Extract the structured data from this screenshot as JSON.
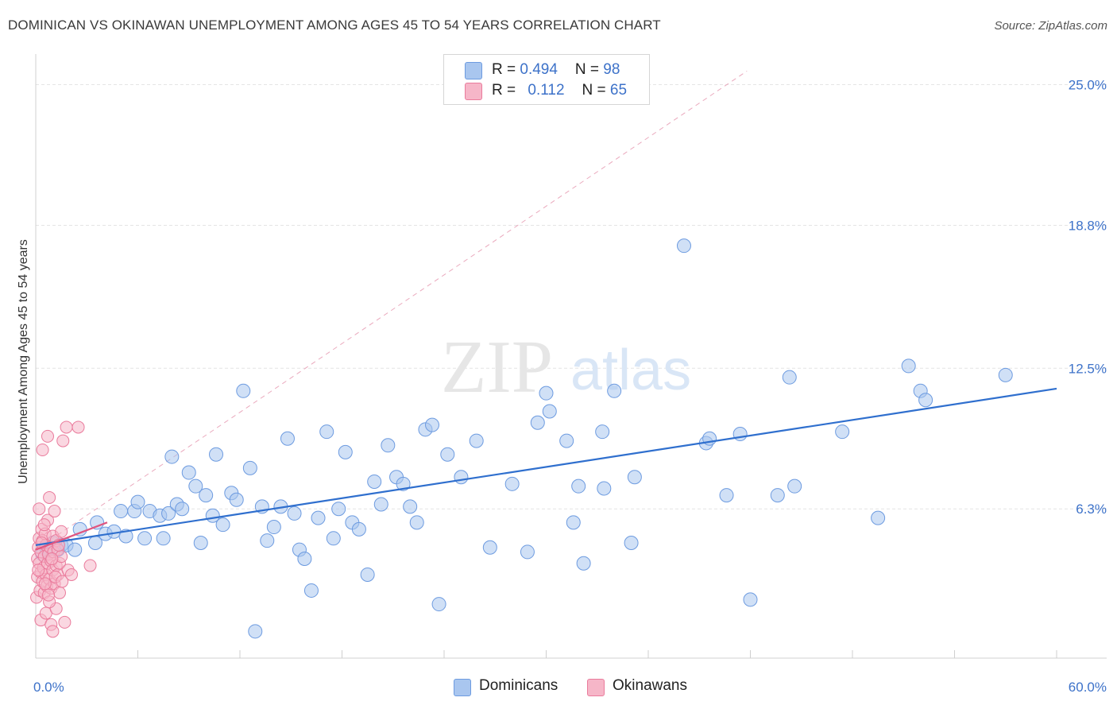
{
  "title": "DOMINICAN VS OKINAWAN UNEMPLOYMENT AMONG AGES 45 TO 54 YEARS CORRELATION CHART",
  "source": "Source: ZipAtlas.com",
  "watermark": {
    "zip": "ZIP",
    "atlas": "atlas"
  },
  "colors": {
    "blue_fill": "#a9c6ef",
    "blue_stroke": "#6d9be0",
    "blue_line": "#2f6fce",
    "pink_fill": "#f6b6c8",
    "pink_stroke": "#ea7b9c",
    "pink_line": "#e0557f",
    "axis_text": "#3d72c9",
    "grid": "#e4e4e4"
  },
  "legend_top": [
    {
      "r_label": "R = ",
      "r_value": "0.494",
      "n_label": "N = ",
      "n_value": "98"
    },
    {
      "r_label": "R = ",
      "r_value": "0.112",
      "n_label": "N = ",
      "n_value": "65"
    }
  ],
  "legend_bottom": [
    "Dominicans",
    "Okinawans"
  ],
  "chart_data": {
    "type": "scatter",
    "title": "DOMINICAN VS OKINAWAN UNEMPLOYMENT AMONG AGES 45 TO 54 YEARS CORRELATION CHART",
    "xlabel": "",
    "ylabel": "Unemployment Among Ages 45 to 54 years",
    "xlim": [
      0,
      60
    ],
    "ylim": [
      0,
      26
    ],
    "x_tick_labels": [
      {
        "value": 0,
        "label": "0.0%"
      },
      {
        "value": 60,
        "label": "60.0%"
      }
    ],
    "y_tick_labels": [
      {
        "value": 6.3,
        "label": "6.3%"
      },
      {
        "value": 12.5,
        "label": "12.5%"
      },
      {
        "value": 18.8,
        "label": "18.8%"
      },
      {
        "value": 25.0,
        "label": "25.0%"
      }
    ],
    "series": [
      {
        "name": "Dominicans",
        "r": 0.494,
        "n": 98,
        "trend": {
          "x": [
            0,
            60
          ],
          "y": [
            4.7,
            11.6
          ]
        },
        "points": [
          [
            0.4,
            4.3
          ],
          [
            0.6,
            4.6
          ],
          [
            0.7,
            4.5
          ],
          [
            0.8,
            4.6
          ],
          [
            1.0,
            4.8
          ],
          [
            1.3,
            4.5
          ],
          [
            1.5,
            4.7
          ],
          [
            1.8,
            4.7
          ],
          [
            2.3,
            4.5
          ],
          [
            2.6,
            5.4
          ],
          [
            3.5,
            4.8
          ],
          [
            3.6,
            5.7
          ],
          [
            4.1,
            5.2
          ],
          [
            4.6,
            5.3
          ],
          [
            5.0,
            6.2
          ],
          [
            5.3,
            5.1
          ],
          [
            5.8,
            6.2
          ],
          [
            6.0,
            6.6
          ],
          [
            6.4,
            5.0
          ],
          [
            6.7,
            6.2
          ],
          [
            7.3,
            6.0
          ],
          [
            7.5,
            5.0
          ],
          [
            7.8,
            6.1
          ],
          [
            8.0,
            8.6
          ],
          [
            8.3,
            6.5
          ],
          [
            8.6,
            6.3
          ],
          [
            9.0,
            7.9
          ],
          [
            9.4,
            7.3
          ],
          [
            9.7,
            4.8
          ],
          [
            10.0,
            6.9
          ],
          [
            10.4,
            6.0
          ],
          [
            10.6,
            8.7
          ],
          [
            11.0,
            5.6
          ],
          [
            11.5,
            7.0
          ],
          [
            11.8,
            6.7
          ],
          [
            12.2,
            11.5
          ],
          [
            12.6,
            8.1
          ],
          [
            12.9,
            0.9
          ],
          [
            13.3,
            6.4
          ],
          [
            13.6,
            4.9
          ],
          [
            14.0,
            5.5
          ],
          [
            14.4,
            6.4
          ],
          [
            14.8,
            9.4
          ],
          [
            15.2,
            6.1
          ],
          [
            15.5,
            4.5
          ],
          [
            15.8,
            4.1
          ],
          [
            16.2,
            2.7
          ],
          [
            16.6,
            5.9
          ],
          [
            17.1,
            9.7
          ],
          [
            17.5,
            5.0
          ],
          [
            17.8,
            6.3
          ],
          [
            18.2,
            8.8
          ],
          [
            18.6,
            5.7
          ],
          [
            19.0,
            5.4
          ],
          [
            19.5,
            3.4
          ],
          [
            19.9,
            7.5
          ],
          [
            20.3,
            6.5
          ],
          [
            20.7,
            9.1
          ],
          [
            21.2,
            7.7
          ],
          [
            21.6,
            7.4
          ],
          [
            22.0,
            6.4
          ],
          [
            22.4,
            5.7
          ],
          [
            22.9,
            9.8
          ],
          [
            23.3,
            10.0
          ],
          [
            23.7,
            2.1
          ],
          [
            24.2,
            8.7
          ],
          [
            25.0,
            7.7
          ],
          [
            25.9,
            9.3
          ],
          [
            26.7,
            4.6
          ],
          [
            28.0,
            7.4
          ],
          [
            28.9,
            4.4
          ],
          [
            29.5,
            10.1
          ],
          [
            30.0,
            11.4
          ],
          [
            30.2,
            10.6
          ],
          [
            31.2,
            9.3
          ],
          [
            31.6,
            5.7
          ],
          [
            31.9,
            7.3
          ],
          [
            32.2,
            3.9
          ],
          [
            33.3,
            9.7
          ],
          [
            33.4,
            7.2
          ],
          [
            34.0,
            11.5
          ],
          [
            35.2,
            7.7
          ],
          [
            35.0,
            4.8
          ],
          [
            38.1,
            17.9
          ],
          [
            39.4,
            9.2
          ],
          [
            39.6,
            9.4
          ],
          [
            40.6,
            6.9
          ],
          [
            41.4,
            9.6
          ],
          [
            42.0,
            2.3
          ],
          [
            43.6,
            6.9
          ],
          [
            44.3,
            12.1
          ],
          [
            44.6,
            7.3
          ],
          [
            47.4,
            9.7
          ],
          [
            49.5,
            5.9
          ],
          [
            51.3,
            12.6
          ],
          [
            52.0,
            11.5
          ],
          [
            52.3,
            11.1
          ],
          [
            57.0,
            12.2
          ]
        ]
      },
      {
        "name": "Okinawans",
        "r": 0.112,
        "n": 65,
        "trend": {
          "x": [
            0,
            4.2
          ],
          "y": [
            4.5,
            5.7
          ]
        },
        "points": [
          [
            0.05,
            2.4
          ],
          [
            0.1,
            3.3
          ],
          [
            0.1,
            4.1
          ],
          [
            0.15,
            4.6
          ],
          [
            0.2,
            5.0
          ],
          [
            0.2,
            3.9
          ],
          [
            0.25,
            2.7
          ],
          [
            0.3,
            3.5
          ],
          [
            0.3,
            4.4
          ],
          [
            0.35,
            5.4
          ],
          [
            0.4,
            3.1
          ],
          [
            0.4,
            4.9
          ],
          [
            0.45,
            3.7
          ],
          [
            0.5,
            2.6
          ],
          [
            0.5,
            4.2
          ],
          [
            0.55,
            5.2
          ],
          [
            0.6,
            3.4
          ],
          [
            0.6,
            4.7
          ],
          [
            0.65,
            2.9
          ],
          [
            0.7,
            3.9
          ],
          [
            0.7,
            5.8
          ],
          [
            0.75,
            4.3
          ],
          [
            0.8,
            3.2
          ],
          [
            0.8,
            6.8
          ],
          [
            0.85,
            4.6
          ],
          [
            0.9,
            2.8
          ],
          [
            0.9,
            4.0
          ],
          [
            1.0,
            3.6
          ],
          [
            1.0,
            5.1
          ],
          [
            1.05,
            4.4
          ],
          [
            1.1,
            3.0
          ],
          [
            1.1,
            6.2
          ],
          [
            1.2,
            3.8
          ],
          [
            1.2,
            4.9
          ],
          [
            1.3,
            3.4
          ],
          [
            1.3,
            4.5
          ],
          [
            1.4,
            2.6
          ],
          [
            1.4,
            3.9
          ],
          [
            1.5,
            4.2
          ],
          [
            1.5,
            5.3
          ],
          [
            0.3,
            1.4
          ],
          [
            0.6,
            1.7
          ],
          [
            0.9,
            1.2
          ],
          [
            1.2,
            1.9
          ],
          [
            0.4,
            8.9
          ],
          [
            0.7,
            9.5
          ],
          [
            1.6,
            9.3
          ],
          [
            1.8,
            9.9
          ],
          [
            2.5,
            9.9
          ],
          [
            0.2,
            6.3
          ],
          [
            0.5,
            5.6
          ],
          [
            0.8,
            2.2
          ],
          [
            1.0,
            0.9
          ],
          [
            1.7,
            1.3
          ],
          [
            1.9,
            3.6
          ],
          [
            2.1,
            3.4
          ],
          [
            3.2,
            3.8
          ],
          [
            0.15,
            3.6
          ],
          [
            0.35,
            4.8
          ],
          [
            0.55,
            3.0
          ],
          [
            0.75,
            2.5
          ],
          [
            0.95,
            4.1
          ],
          [
            1.15,
            3.3
          ],
          [
            1.35,
            4.7
          ],
          [
            1.55,
            3.1
          ]
        ]
      }
    ]
  }
}
